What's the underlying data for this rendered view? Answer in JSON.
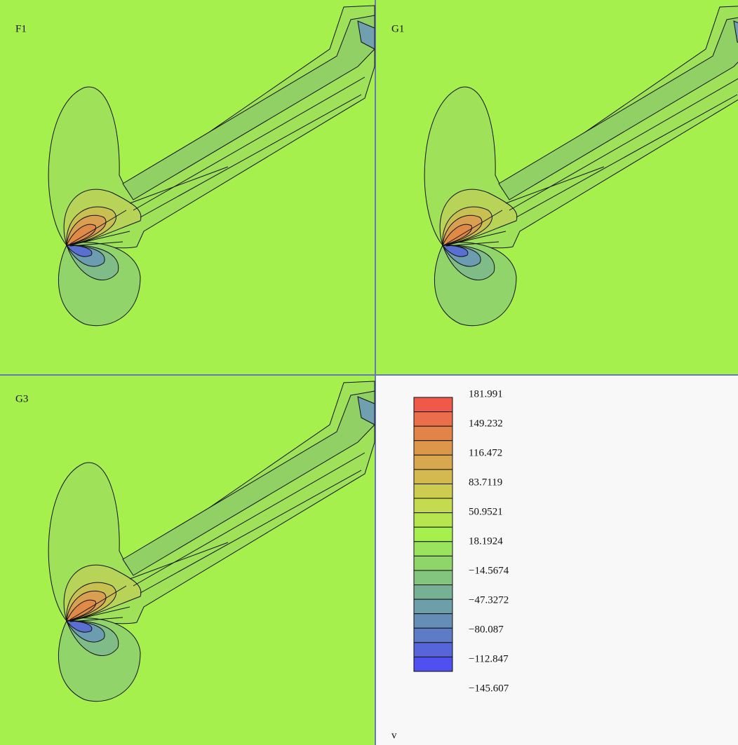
{
  "panels": [
    {
      "label": "F1"
    },
    {
      "label": "G1"
    },
    {
      "label": "G3"
    }
  ],
  "colorbar": {
    "variable": "v",
    "labels": [
      "181.991",
      "149.232",
      "116.472",
      "83.7119",
      "50.9521",
      "18.1924",
      "−14.5674",
      "−47.3272",
      "−80.087",
      "−112.847",
      "−145.607"
    ]
  }
}
